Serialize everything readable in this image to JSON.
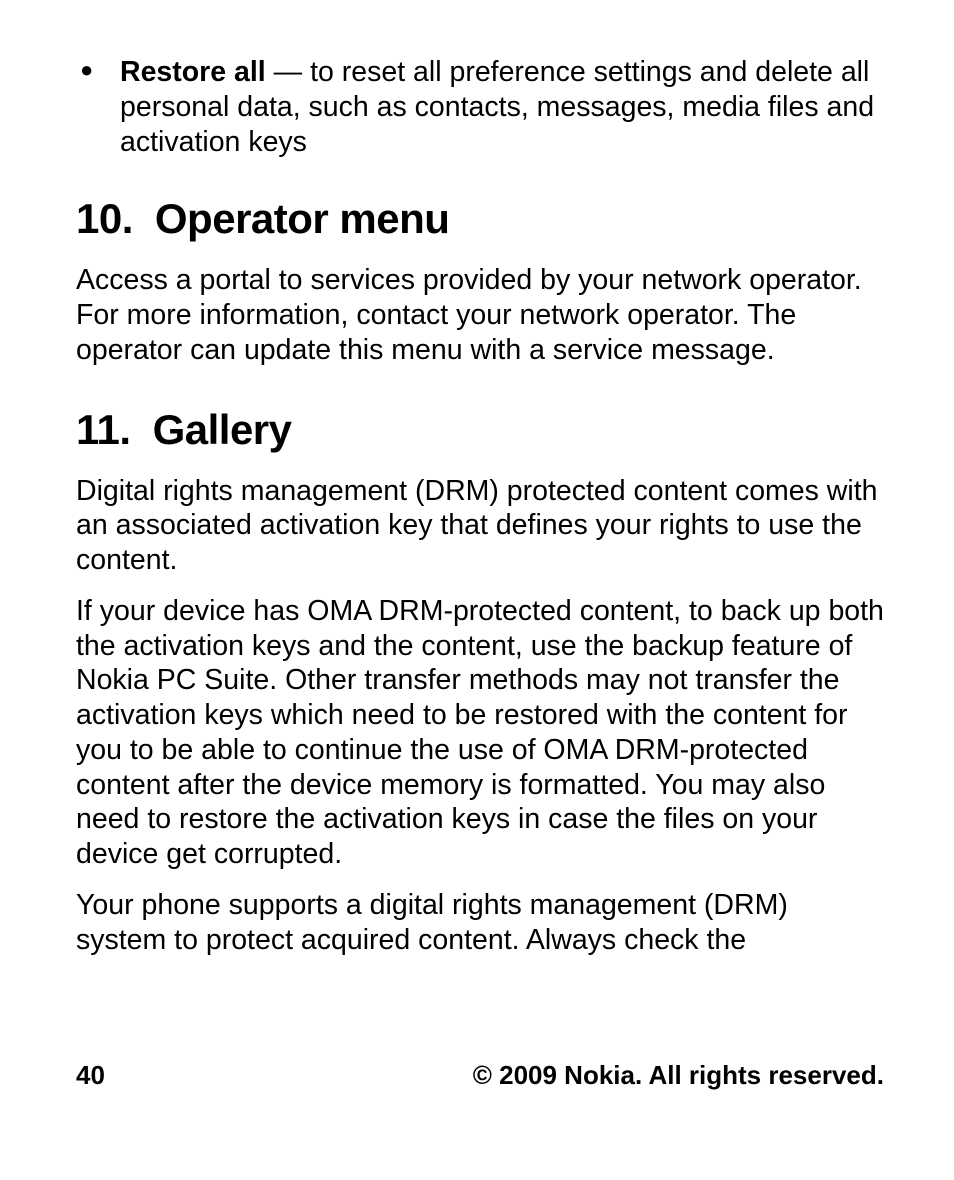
{
  "bullet": {
    "term": "Restore all",
    "sep": " — ",
    "desc": "to reset all preference settings and delete all personal data, such as contacts, messages, media files and activation keys"
  },
  "sections": [
    {
      "number": "10.",
      "title": "Operator menu",
      "paragraphs": [
        "Access a portal to services provided by your network operator. For more information, contact your network operator. The operator can update this menu with a service message."
      ]
    },
    {
      "number": "11.",
      "title": "Gallery",
      "paragraphs": [
        "Digital rights management (DRM) protected content comes with an associated activation key that defines your rights to use the content.",
        "If your device has OMA DRM-protected content, to back up both the activation keys and the content, use the backup feature of Nokia PC Suite. Other transfer methods may not transfer the activation keys which need to be restored with the content for you to be able to continue the use of OMA DRM-protected content after the device memory is formatted. You may also need to restore the activation keys in case the files on your device get corrupted.",
        "Your phone supports a digital rights management (DRM) system to protect acquired content. Always check the"
      ]
    }
  ],
  "footer": {
    "page_number": "40",
    "copyright": "© 2009 Nokia. All rights reserved."
  }
}
